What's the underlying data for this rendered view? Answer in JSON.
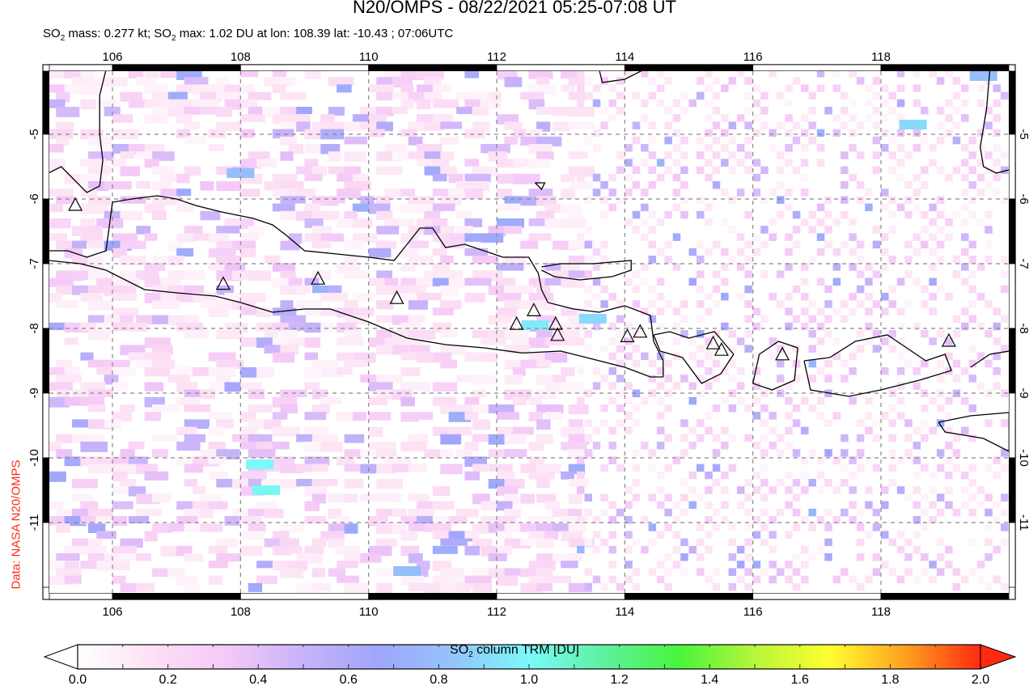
{
  "header": {
    "title": "N20/OMPS - 08/22/2021 05:25-07:08 UT",
    "subtitle_parts": {
      "so2_a": "SO",
      "sub2_a": "2",
      "mass_text": " mass: 0.277 kt; SO",
      "sub2_b": "2",
      "max_text": " max: 1.02 DU at lon: 108.39 lat: -10.43 ; 07:06UTC"
    }
  },
  "credit": "Data: NASA N20/OMPS",
  "map": {
    "lon_range": [
      105.0,
      120.0
    ],
    "lat_range": [
      -12.0,
      -4.0
    ],
    "lon_ticks": [
      "106",
      "108",
      "110",
      "112",
      "114",
      "116",
      "118"
    ],
    "lat_ticks": [
      "-5",
      "-6",
      "-7",
      "-8",
      "-9",
      "-10",
      "-11"
    ],
    "volcano_markers": [
      {
        "lon": 105.42,
        "lat": -6.1
      },
      {
        "lon": 107.73,
        "lat": -7.32
      },
      {
        "lon": 109.21,
        "lat": -7.24
      },
      {
        "lon": 110.44,
        "lat": -7.54
      },
      {
        "lon": 112.31,
        "lat": -7.94
      },
      {
        "lon": 112.58,
        "lat": -7.73
      },
      {
        "lon": 112.92,
        "lat": -7.94
      },
      {
        "lon": 112.95,
        "lat": -8.11
      },
      {
        "lon": 114.04,
        "lat": -8.13
      },
      {
        "lon": 114.24,
        "lat": -8.06
      },
      {
        "lon": 115.38,
        "lat": -8.24
      },
      {
        "lon": 115.51,
        "lat": -8.34
      },
      {
        "lon": 116.46,
        "lat": -8.41
      },
      {
        "lon": 119.06,
        "lat": -8.2
      }
    ],
    "max_marker": {
      "lon": 108.39,
      "lat": -10.43,
      "value_du": 1.02
    }
  },
  "colorbar": {
    "title_main": "SO",
    "title_sub": "2",
    "title_rest": " column TRM [DU]",
    "labels": [
      "0.0",
      "0.2",
      "0.4",
      "0.6",
      "0.8",
      "1.0",
      "1.2",
      "1.4",
      "1.6",
      "1.8",
      "2.0"
    ],
    "stops": [
      "#ffffff",
      "#fde0f4",
      "#f4c8f8",
      "#c7b3fa",
      "#a0a6fb",
      "#94c4fb",
      "#7bf9f9",
      "#5ff0a0",
      "#48f53c",
      "#b8f53a",
      "#ffff30",
      "#ffa020",
      "#ff2a10"
    ],
    "min": 0.0,
    "max": 2.0
  },
  "chart_data": {
    "type": "heatmap",
    "title": "N20/OMPS - 08/22/2021 05:25-07:08 UT",
    "subtitle": "SO2 mass: 0.277 kt; SO2 max: 1.02 DU at lon: 108.39 lat: -10.43 ; 07:06UTC",
    "xlabel": "Longitude",
    "ylabel": "Latitude",
    "xlim": [
      105.0,
      120.0
    ],
    "ylim": [
      -12.0,
      -4.0
    ],
    "x_ticks": [
      106,
      108,
      110,
      112,
      114,
      116,
      118
    ],
    "y_ticks": [
      -5,
      -6,
      -7,
      -8,
      -9,
      -10,
      -11
    ],
    "colorbar_label": "SO2 column TRM [DU]",
    "colorbar_range": [
      0.0,
      2.0
    ],
    "colorbar_ticks": [
      0.0,
      0.2,
      0.4,
      0.6,
      0.8,
      1.0,
      1.2,
      1.4,
      1.6,
      1.8,
      2.0
    ],
    "grid": true,
    "max_value": {
      "lon": 108.39,
      "lat": -10.43,
      "value": 1.02
    },
    "so2_mass_kt": 0.277,
    "notable_cells": [
      {
        "lon": 108.3,
        "lat": -10.1,
        "value": 1.0
      },
      {
        "lon": 108.4,
        "lat": -10.5,
        "value": 1.02
      },
      {
        "lon": 112.6,
        "lat": -7.95,
        "value": 0.95
      },
      {
        "lon": 113.5,
        "lat": -7.85,
        "value": 0.9
      },
      {
        "lon": 108.0,
        "lat": -5.6,
        "value": 0.8
      },
      {
        "lon": 110.6,
        "lat": -11.75,
        "value": 0.8
      },
      {
        "lon": 119.6,
        "lat": -4.1,
        "value": 0.8
      },
      {
        "lon": 118.5,
        "lat": -4.85,
        "value": 0.9
      }
    ]
  }
}
